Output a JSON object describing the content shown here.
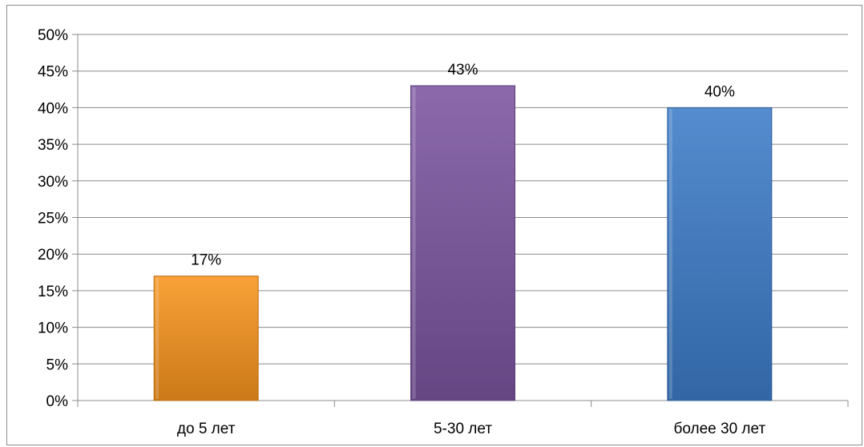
{
  "chart_data": {
    "type": "bar",
    "categories": [
      "до 5 лет",
      "5-30 лет",
      "более 30 лет"
    ],
    "values": [
      17,
      43,
      40
    ],
    "data_labels": [
      "17%",
      "43%",
      "40%"
    ],
    "y_ticks": [
      "0%",
      "5%",
      "10%",
      "15%",
      "20%",
      "25%",
      "30%",
      "35%",
      "40%",
      "45%",
      "50%"
    ],
    "ylim": [
      0,
      50
    ],
    "title": "",
    "xlabel": "",
    "ylabel": "",
    "grid": true,
    "legend": "none",
    "colors": [
      "#f7941d",
      "#7b55a0",
      "#3d7cc9"
    ]
  }
}
